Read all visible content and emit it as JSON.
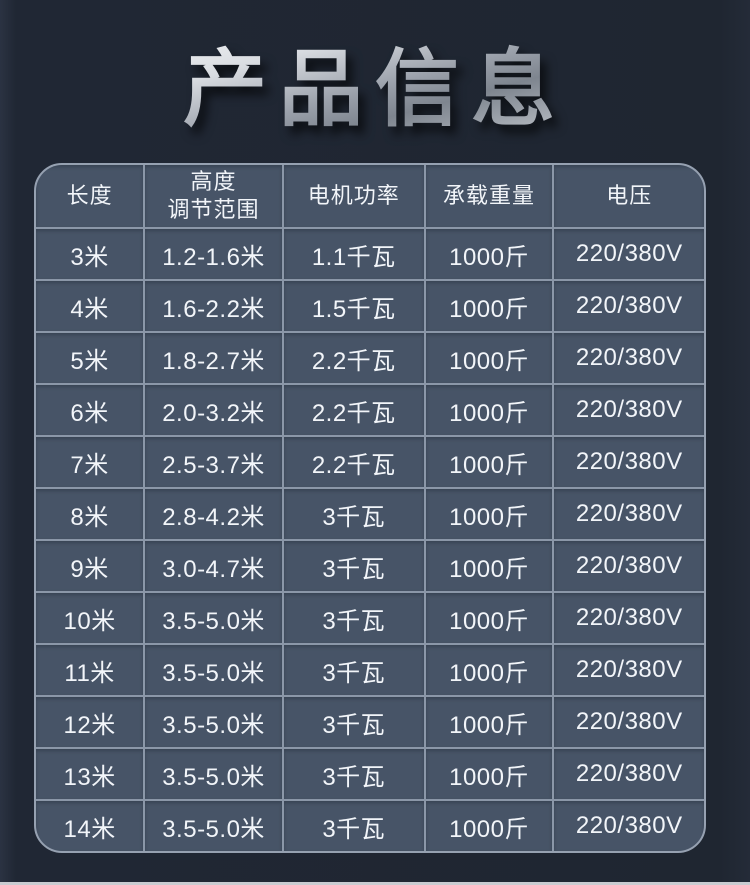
{
  "title": "产品信息",
  "table": {
    "headers": [
      {
        "lines": [
          "长度"
        ]
      },
      {
        "lines": [
          "高度",
          "调节范围"
        ]
      },
      {
        "lines": [
          "电机功率"
        ]
      },
      {
        "lines": [
          "承载重量"
        ]
      },
      {
        "lines": [
          "电压"
        ]
      }
    ],
    "rows": [
      [
        "3米",
        "1.2-1.6米",
        "1.1千瓦",
        "1000斤",
        "220/380V"
      ],
      [
        "4米",
        "1.6-2.2米",
        "1.5千瓦",
        "1000斤",
        "220/380V"
      ],
      [
        "5米",
        "1.8-2.7米",
        "2.2千瓦",
        "1000斤",
        "220/380V"
      ],
      [
        "6米",
        "2.0-3.2米",
        "2.2千瓦",
        "1000斤",
        "220/380V"
      ],
      [
        "7米",
        "2.5-3.7米",
        "2.2千瓦",
        "1000斤",
        "220/380V"
      ],
      [
        "8米",
        "2.8-4.2米",
        "3千瓦",
        "1000斤",
        "220/380V"
      ],
      [
        "9米",
        "3.0-4.7米",
        "3千瓦",
        "1000斤",
        "220/380V"
      ],
      [
        "10米",
        "3.5-5.0米",
        "3千瓦",
        "1000斤",
        "220/380V"
      ],
      [
        "11米",
        "3.5-5.0米",
        "3千瓦",
        "1000斤",
        "220/380V"
      ],
      [
        "12米",
        "3.5-5.0米",
        "3千瓦",
        "1000斤",
        "220/380V"
      ],
      [
        "13米",
        "3.5-5.0米",
        "3千瓦",
        "1000斤",
        "220/380V"
      ],
      [
        "14米",
        "3.5-5.0米",
        "3千瓦",
        "1000斤",
        "220/380V"
      ]
    ]
  },
  "chart_data": {
    "type": "table",
    "title": "产品信息",
    "columns": [
      "长度",
      "高度调节范围",
      "电机功率",
      "承载重量",
      "电压"
    ],
    "rows": [
      [
        "3米",
        "1.2-1.6米",
        "1.1千瓦",
        "1000斤",
        "220/380V"
      ],
      [
        "4米",
        "1.6-2.2米",
        "1.5千瓦",
        "1000斤",
        "220/380V"
      ],
      [
        "5米",
        "1.8-2.7米",
        "2.2千瓦",
        "1000斤",
        "220/380V"
      ],
      [
        "6米",
        "2.0-3.2米",
        "2.2千瓦",
        "1000斤",
        "220/380V"
      ],
      [
        "7米",
        "2.5-3.7米",
        "2.2千瓦",
        "1000斤",
        "220/380V"
      ],
      [
        "8米",
        "2.8-4.2米",
        "3千瓦",
        "1000斤",
        "220/380V"
      ],
      [
        "9米",
        "3.0-4.7米",
        "3千瓦",
        "1000斤",
        "220/380V"
      ],
      [
        "10米",
        "3.5-5.0米",
        "3千瓦",
        "1000斤",
        "220/380V"
      ],
      [
        "11米",
        "3.5-5.0米",
        "3千瓦",
        "1000斤",
        "220/380V"
      ],
      [
        "12米",
        "3.5-5.0米",
        "3千瓦",
        "1000斤",
        "220/380V"
      ],
      [
        "13米",
        "3.5-5.0米",
        "3千瓦",
        "1000斤",
        "220/380V"
      ],
      [
        "14米",
        "3.5-5.0米",
        "3千瓦",
        "1000斤",
        "220/380V"
      ]
    ]
  },
  "colors": {
    "page_background": "#202734",
    "cell_background": "#475467",
    "grid_line": "#8b97a8",
    "cell_text": "#f2f5f9",
    "title_silver_light": "#ffffff",
    "title_silver_dark": "#7e858f",
    "bottom_strip": "#c9ccd1"
  }
}
